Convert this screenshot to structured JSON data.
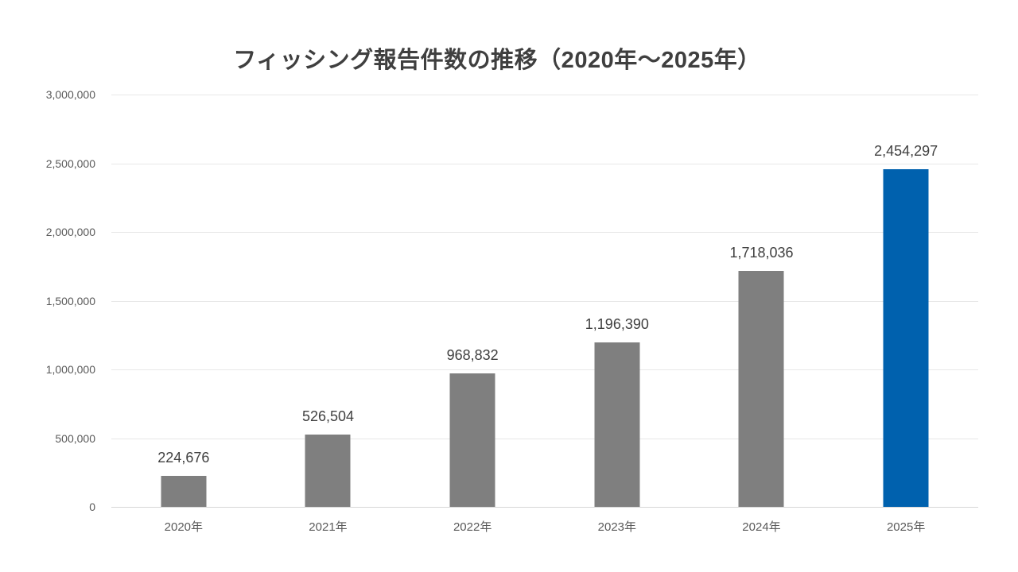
{
  "chart_data": {
    "type": "bar",
    "title": "フィッシング報告件数の推移（2020年〜2025年）",
    "categories": [
      "2020年",
      "2021年",
      "2022年",
      "2023年",
      "2024年",
      "2025年"
    ],
    "values": [
      224676,
      526504,
      968832,
      1196390,
      1718036,
      2454297
    ],
    "value_labels": [
      "224,676",
      "526,504",
      "968,832",
      "1,196,390",
      "1,718,036",
      "2,454,297"
    ],
    "xlabel": "",
    "ylabel": "",
    "ylim": [
      0,
      3000000
    ],
    "y_ticks": [
      0,
      500000,
      1000000,
      1500000,
      2000000,
      2500000,
      3000000
    ],
    "y_tick_labels": [
      "0",
      "500,000",
      "1,000,000",
      "1,500,000",
      "2,000,000",
      "2,500,000",
      "3,000,000"
    ],
    "grid": "horizontal",
    "legend": "none",
    "colors": {
      "bar_default": "#7f7f7f",
      "bar_highlight": "#0061ae",
      "highlight_index": 5,
      "gridline": "#e8e8e8",
      "axis_line": "#d6d6d6",
      "title_text": "#3f3f3f",
      "tick_text": "#595959",
      "value_label_text": "#404040",
      "background": "#ffffff"
    }
  }
}
